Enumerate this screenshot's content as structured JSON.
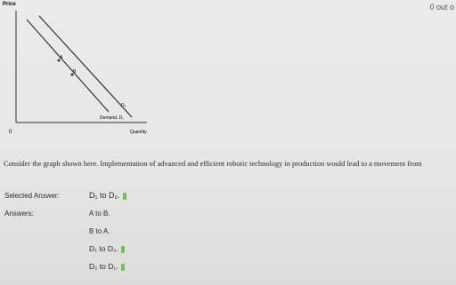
{
  "score": "0 out o",
  "graph": {
    "y_axis_label": "Price",
    "x_axis_label": "Quantity",
    "origin": "0",
    "point_a": "A",
    "point_b": "B",
    "curve_d2": "D₂",
    "curve_d1": "Demand, D₁"
  },
  "question": {
    "text": "Consider the graph shown here. Implementation of advanced and efficient robotic technology in production would lead to a movement from"
  },
  "selected_answer": {
    "label": "Selected Answer:",
    "text": "D₁ to D₂."
  },
  "answers": {
    "label": "Answers:",
    "options": [
      "A to B.",
      "B to A.",
      "D₁ to D₂.",
      "D₂ to D₁."
    ]
  }
}
